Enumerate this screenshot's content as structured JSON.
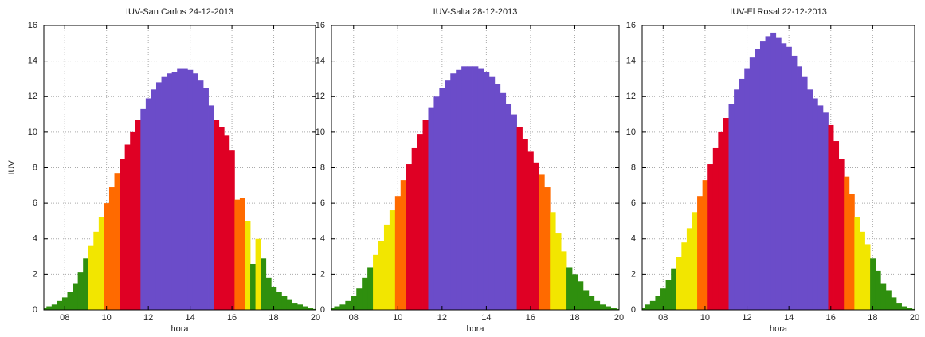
{
  "chart_data": [
    {
      "type": "bar",
      "title": "IUV-San Carlos 24-12-2013",
      "xlabel": "hora",
      "ylabel": "IUV",
      "x": [
        7,
        7.25,
        7.5,
        7.75,
        8,
        8.25,
        8.5,
        8.75,
        9,
        9.25,
        9.5,
        9.75,
        10,
        10.25,
        10.5,
        10.75,
        11,
        11.25,
        11.5,
        11.75,
        12,
        12.25,
        12.5,
        12.75,
        13,
        13.25,
        13.5,
        13.75,
        14,
        14.25,
        14.5,
        14.75,
        15,
        15.25,
        15.5,
        15.75,
        16,
        16.25,
        16.5,
        16.75,
        17,
        17.25,
        17.5,
        17.75,
        18,
        18.25,
        18.5,
        18.75,
        19,
        19.25,
        19.5,
        19.75,
        20
      ],
      "values": [
        0.1,
        0.2,
        0.3,
        0.5,
        0.7,
        1.0,
        1.5,
        2.1,
        2.9,
        3.6,
        4.4,
        5.2,
        6.0,
        6.9,
        7.7,
        8.5,
        9.3,
        10.0,
        10.7,
        11.3,
        11.9,
        12.4,
        12.8,
        13.1,
        13.3,
        13.4,
        13.6,
        13.6,
        13.5,
        13.3,
        12.9,
        12.5,
        11.5,
        10.7,
        10.3,
        9.8,
        9.0,
        6.2,
        6.3,
        5.0,
        2.6,
        4.0,
        2.9,
        1.8,
        1.3,
        1.0,
        0.8,
        0.6,
        0.4,
        0.3,
        0.2,
        0.1,
        0.05
      ],
      "colors": [
        "#2f8f0e",
        "#2f8f0e",
        "#2f8f0e",
        "#2f8f0e",
        "#2f8f0e",
        "#2f8f0e",
        "#2f8f0e",
        "#2f8f0e",
        "#2f8f0e",
        "#f2e600",
        "#f2e600",
        "#f2e600",
        "#ff6a00",
        "#ff6a00",
        "#ff6a00",
        "#df0024",
        "#df0024",
        "#df0024",
        "#df0024",
        "#6b4cc9",
        "#6b4cc9",
        "#6b4cc9",
        "#6b4cc9",
        "#6b4cc9",
        "#6b4cc9",
        "#6b4cc9",
        "#6b4cc9",
        "#6b4cc9",
        "#6b4cc9",
        "#6b4cc9",
        "#6b4cc9",
        "#6b4cc9",
        "#6b4cc9",
        "#df0024",
        "#df0024",
        "#df0024",
        "#df0024",
        "#ff6a00",
        "#ff6a00",
        "#f2e600",
        "#2f8f0e",
        "#f2e600",
        "#2f8f0e",
        "#2f8f0e",
        "#2f8f0e",
        "#2f8f0e",
        "#2f8f0e",
        "#2f8f0e",
        "#2f8f0e",
        "#2f8f0e",
        "#2f8f0e",
        "#2f8f0e",
        "#2f8f0e"
      ],
      "xlim": [
        7,
        20
      ],
      "ylim": [
        0,
        16
      ],
      "xticks": [
        {
          "value": 8,
          "label": "08"
        },
        {
          "value": 10,
          "label": "10"
        },
        {
          "value": 12,
          "label": "12"
        },
        {
          "value": 14,
          "label": "14"
        },
        {
          "value": 16,
          "label": "16"
        },
        {
          "value": 18,
          "label": "18"
        },
        {
          "value": 20,
          "label": "20"
        }
      ],
      "yticks": [
        0,
        2,
        4,
        6,
        8,
        10,
        12,
        14,
        16
      ],
      "grid": true
    },
    {
      "type": "bar",
      "title": "IUV-Salta 28-12-2013",
      "xlabel": "hora",
      "x": [
        7,
        7.25,
        7.5,
        7.75,
        8,
        8.25,
        8.5,
        8.75,
        9,
        9.25,
        9.5,
        9.75,
        10,
        10.25,
        10.5,
        10.75,
        11,
        11.25,
        11.5,
        11.75,
        12,
        12.25,
        12.5,
        12.75,
        13,
        13.25,
        13.5,
        13.75,
        14,
        14.25,
        14.5,
        14.75,
        15,
        15.25,
        15.5,
        15.75,
        16,
        16.25,
        16.5,
        16.75,
        17,
        17.25,
        17.5,
        17.75,
        18,
        18.25,
        18.5,
        18.75,
        19,
        19.25,
        19.5,
        19.75,
        20
      ],
      "values": [
        0.1,
        0.2,
        0.3,
        0.5,
        0.8,
        1.2,
        1.8,
        2.4,
        3.1,
        3.9,
        4.8,
        5.6,
        6.4,
        7.3,
        8.2,
        9.1,
        9.9,
        10.7,
        11.4,
        12.0,
        12.5,
        12.9,
        13.3,
        13.5,
        13.7,
        13.7,
        13.7,
        13.6,
        13.4,
        13.1,
        12.7,
        12.2,
        11.6,
        11.0,
        10.3,
        9.6,
        8.9,
        8.3,
        7.6,
        6.9,
        5.5,
        4.3,
        3.3,
        2.4,
        2.0,
        1.6,
        1.1,
        0.8,
        0.5,
        0.3,
        0.2,
        0.1,
        0.05
      ],
      "colors": [
        "#2f8f0e",
        "#2f8f0e",
        "#2f8f0e",
        "#2f8f0e",
        "#2f8f0e",
        "#2f8f0e",
        "#2f8f0e",
        "#2f8f0e",
        "#f2e600",
        "#f2e600",
        "#f2e600",
        "#f2e600",
        "#ff6a00",
        "#ff6a00",
        "#df0024",
        "#df0024",
        "#df0024",
        "#df0024",
        "#6b4cc9",
        "#6b4cc9",
        "#6b4cc9",
        "#6b4cc9",
        "#6b4cc9",
        "#6b4cc9",
        "#6b4cc9",
        "#6b4cc9",
        "#6b4cc9",
        "#6b4cc9",
        "#6b4cc9",
        "#6b4cc9",
        "#6b4cc9",
        "#6b4cc9",
        "#6b4cc9",
        "#6b4cc9",
        "#df0024",
        "#df0024",
        "#df0024",
        "#df0024",
        "#ff6a00",
        "#ff6a00",
        "#f2e600",
        "#f2e600",
        "#f2e600",
        "#2f8f0e",
        "#2f8f0e",
        "#2f8f0e",
        "#2f8f0e",
        "#2f8f0e",
        "#2f8f0e",
        "#2f8f0e",
        "#2f8f0e",
        "#2f8f0e",
        "#2f8f0e"
      ],
      "xlim": [
        7,
        20
      ],
      "ylim": [
        0,
        16
      ],
      "xticks": [
        {
          "value": 8,
          "label": "08"
        },
        {
          "value": 10,
          "label": "10"
        },
        {
          "value": 12,
          "label": "12"
        },
        {
          "value": 14,
          "label": "14"
        },
        {
          "value": 16,
          "label": "16"
        },
        {
          "value": 18,
          "label": "18"
        },
        {
          "value": 20,
          "label": "20"
        }
      ],
      "yticks": [
        0,
        2,
        4,
        6,
        8,
        10,
        12,
        14,
        16
      ],
      "grid": true
    },
    {
      "type": "bar",
      "title": "IUV-El Rosal 22-12-2013",
      "xlabel": "hora",
      "x": [
        7,
        7.25,
        7.5,
        7.75,
        8,
        8.25,
        8.5,
        8.75,
        9,
        9.25,
        9.5,
        9.75,
        10,
        10.25,
        10.5,
        10.75,
        11,
        11.25,
        11.5,
        11.75,
        12,
        12.25,
        12.5,
        12.75,
        13,
        13.25,
        13.5,
        13.75,
        14,
        14.25,
        14.5,
        14.75,
        15,
        15.25,
        15.5,
        15.75,
        16,
        16.25,
        16.5,
        16.75,
        17,
        17.25,
        17.5,
        17.75,
        18,
        18.25,
        18.5,
        18.75,
        19,
        19.25,
        19.5,
        19.75,
        20
      ],
      "values": [
        0.1,
        0.3,
        0.5,
        0.8,
        1.2,
        1.7,
        2.3,
        3.0,
        3.8,
        4.6,
        5.5,
        6.4,
        7.3,
        8.2,
        9.1,
        10.0,
        10.8,
        11.6,
        12.4,
        13.0,
        13.6,
        14.2,
        14.7,
        15.1,
        15.4,
        15.6,
        15.3,
        15.0,
        14.8,
        14.3,
        13.7,
        13.1,
        12.4,
        11.9,
        11.5,
        11.1,
        10.4,
        9.5,
        8.5,
        7.5,
        6.5,
        5.2,
        4.4,
        3.7,
        2.9,
        2.2,
        1.5,
        1.1,
        0.7,
        0.4,
        0.2,
        0.1,
        0.05
      ],
      "colors": [
        "#2f8f0e",
        "#2f8f0e",
        "#2f8f0e",
        "#2f8f0e",
        "#2f8f0e",
        "#2f8f0e",
        "#2f8f0e",
        "#f2e600",
        "#f2e600",
        "#f2e600",
        "#f2e600",
        "#ff6a00",
        "#ff6a00",
        "#df0024",
        "#df0024",
        "#df0024",
        "#df0024",
        "#6b4cc9",
        "#6b4cc9",
        "#6b4cc9",
        "#6b4cc9",
        "#6b4cc9",
        "#6b4cc9",
        "#6b4cc9",
        "#6b4cc9",
        "#6b4cc9",
        "#6b4cc9",
        "#6b4cc9",
        "#6b4cc9",
        "#6b4cc9",
        "#6b4cc9",
        "#6b4cc9",
        "#6b4cc9",
        "#6b4cc9",
        "#6b4cc9",
        "#6b4cc9",
        "#df0024",
        "#df0024",
        "#df0024",
        "#ff6a00",
        "#ff6a00",
        "#f2e600",
        "#f2e600",
        "#f2e600",
        "#2f8f0e",
        "#2f8f0e",
        "#2f8f0e",
        "#2f8f0e",
        "#2f8f0e",
        "#2f8f0e",
        "#2f8f0e",
        "#2f8f0e",
        "#2f8f0e"
      ],
      "xlim": [
        7,
        20
      ],
      "ylim": [
        0,
        16
      ],
      "xticks": [
        {
          "value": 8,
          "label": "08"
        },
        {
          "value": 10,
          "label": "10"
        },
        {
          "value": 12,
          "label": "12"
        },
        {
          "value": 14,
          "label": "14"
        },
        {
          "value": 16,
          "label": "16"
        },
        {
          "value": 18,
          "label": "18"
        },
        {
          "value": 20,
          "label": "20"
        }
      ],
      "yticks": [
        0,
        2,
        4,
        6,
        8,
        10,
        12,
        14,
        16
      ],
      "grid": true
    }
  ]
}
